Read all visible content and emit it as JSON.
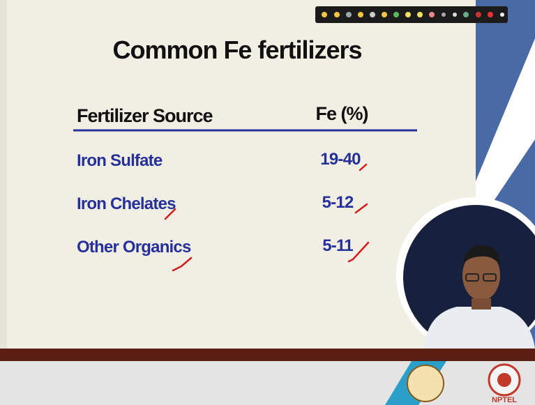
{
  "slide": {
    "title": "Common Fe fertilizers"
  },
  "table": {
    "header": [
      "Fertilizer Source",
      "Fe (%)"
    ],
    "rows": [
      [
        "Iron Sulfate",
        "19-40"
      ],
      [
        "Iron Chelates",
        "5-12"
      ],
      [
        "Other Organics",
        "5-11"
      ]
    ]
  },
  "footer": {
    "logo_text": "NPTEL"
  }
}
